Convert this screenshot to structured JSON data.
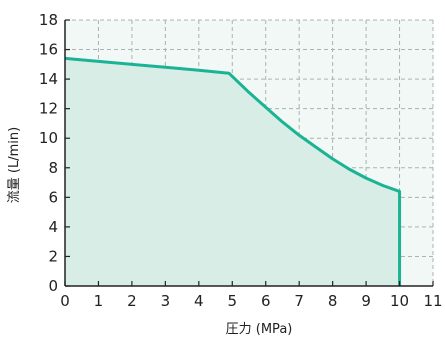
{
  "chart_data": {
    "type": "area",
    "xlabel": "圧力 (MPa)",
    "ylabel": "流量 (L/min)",
    "xlim": [
      0,
      11
    ],
    "ylim": [
      0,
      18
    ],
    "x_ticks": [
      0,
      1,
      2,
      3,
      4,
      5,
      6,
      7,
      8,
      9,
      10,
      11
    ],
    "y_ticks": [
      0,
      2,
      4,
      6,
      8,
      10,
      12,
      14,
      16,
      18
    ],
    "grid": true,
    "series": [
      {
        "x": [
          0,
          1,
          2,
          3,
          4,
          4.9,
          5.5,
          6,
          6.5,
          7,
          7.5,
          8,
          8.5,
          9,
          9.5,
          10,
          10,
          10
        ],
        "y": [
          15.4,
          15.2,
          15.0,
          14.8,
          14.6,
          14.4,
          13.1,
          12.1,
          11.1,
          10.2,
          9.4,
          8.6,
          7.9,
          7.3,
          6.8,
          6.4,
          6.4,
          0
        ]
      }
    ],
    "colors": {
      "line": "#1ab394",
      "fill": "#d8ede6",
      "plot_bg": "#f2f8f5",
      "grid": "#a8b4b0",
      "axis": "#222222"
    }
  }
}
